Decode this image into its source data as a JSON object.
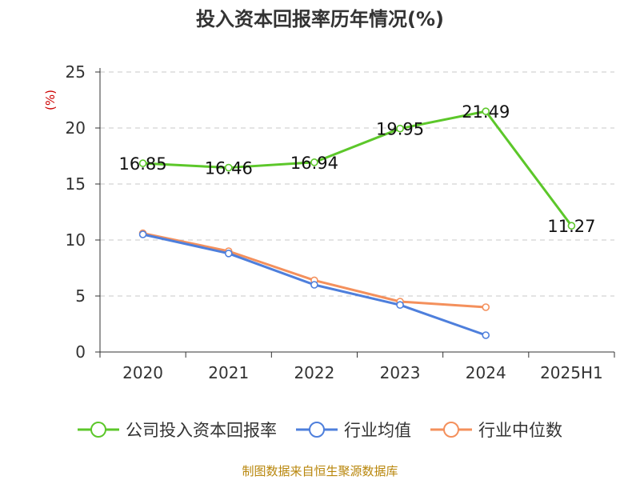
{
  "chart_data": {
    "type": "line",
    "title": "投入资本回报率历年情况(%)",
    "ylabel": "(%)",
    "xlabel": "",
    "categories": [
      "2020",
      "2021",
      "2022",
      "2023",
      "2024",
      "2025H1"
    ],
    "ylim": [
      0,
      25
    ],
    "yticks": [
      0,
      5,
      10,
      15,
      20,
      25
    ],
    "grid": "horizontal-dashed",
    "legend_position": "bottom",
    "series": [
      {
        "name": "公司投入资本回报率",
        "color": "#5cc72a",
        "show_labels": true,
        "values": [
          16.85,
          16.46,
          16.94,
          19.95,
          21.49,
          11.27
        ],
        "labels": [
          "16.85",
          "16.46",
          "16.94",
          "19.95",
          "21.49",
          "11.27"
        ]
      },
      {
        "name": "行业均值",
        "color": "#4e7fdc",
        "show_labels": false,
        "values": [
          10.5,
          8.8,
          6.0,
          4.2,
          1.5,
          null
        ]
      },
      {
        "name": "行业中位数",
        "color": "#f4905c",
        "show_labels": false,
        "values": [
          10.6,
          9.0,
          6.4,
          4.5,
          4.0,
          null
        ]
      }
    ]
  },
  "footer": {
    "source": "制图数据来自恒生聚源数据库"
  }
}
